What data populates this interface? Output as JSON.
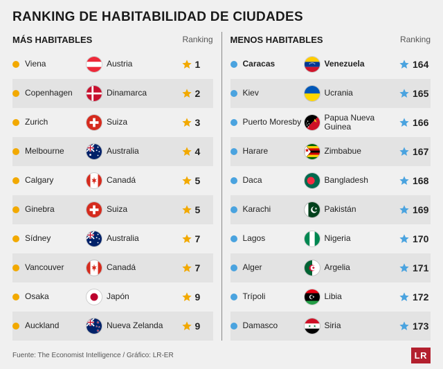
{
  "title": "RANKING DE HABITABILIDAD DE CIUDADES",
  "left": {
    "heading": "MÁS HABITABLES",
    "ranking_label": "Ranking",
    "bullet_color": "#f2a900",
    "star_color": "#f2a900",
    "stripe_light": "#f0f0f0",
    "stripe_dark": "#e3e3e3",
    "rows": [
      {
        "city": "Viena",
        "country": "Austria",
        "rank": "1",
        "flag_svg": "<svg viewBox='0 0 24 24'><rect width='24' height='8' y='0' fill='#ed2939'/><rect width='24' height='8' y='8' fill='#fff'/><rect width='24' height='8' y='16' fill='#ed2939'/></svg>"
      },
      {
        "city": "Copenhagen",
        "country": "Dinamarca",
        "rank": "2",
        "flag_svg": "<svg viewBox='0 0 24 24'><rect width='24' height='24' fill='#c8102e'/><rect x='8' width='3' height='24' fill='#fff'/><rect y='10.5' width='24' height='3' fill='#fff'/></svg>"
      },
      {
        "city": "Zurich",
        "country": "Suiza",
        "rank": "3",
        "flag_svg": "<svg viewBox='0 0 24 24'><rect width='24' height='24' fill='#d52b1e'/><rect x='10' y='5' width='4' height='14' fill='#fff'/><rect x='5' y='10' width='14' height='4' fill='#fff'/></svg>"
      },
      {
        "city": "Melbourne",
        "country": "Australia",
        "rank": "4",
        "flag_svg": "<svg viewBox='0 0 24 24'><rect width='24' height='24' fill='#012169'/><rect width='12' height='12' fill='#012169'/><path d='M0 0 L12 12 M12 0 L0 12' stroke='#fff' stroke-width='2'/><path d='M6 0 V12 M0 6 H12' stroke='#fff' stroke-width='3'/><path d='M6 0 V12 M0 6 H12' stroke='#c8102e' stroke-width='1.5'/><circle cx='6' cy='17' r='1.5' fill='#fff'/><circle cx='18' cy='5' r='1' fill='#fff'/><circle cx='16' cy='10' r='1' fill='#fff'/><circle cx='20' cy='12' r='1' fill='#fff'/><circle cx='18' cy='18' r='1' fill='#fff'/></svg>"
      },
      {
        "city": "Calgary",
        "country": "Canadá",
        "rank": "5",
        "flag_svg": "<svg viewBox='0 0 24 24'><rect width='24' height='24' fill='#fff'/><rect width='6' height='24' fill='#d52b1e'/><rect x='18' width='6' height='24' fill='#d52b1e'/><path d='M12 6 L13 10 L16 9 L14 12 L16 14 L13 13.5 L12 18 L11 13.5 L8 14 L10 12 L8 9 L11 10 Z' fill='#d52b1e'/></svg>"
      },
      {
        "city": "Ginebra",
        "country": "Suiza",
        "rank": "5",
        "flag_svg": "<svg viewBox='0 0 24 24'><rect width='24' height='24' fill='#d52b1e'/><rect x='10' y='5' width='4' height='14' fill='#fff'/><rect x='5' y='10' width='14' height='4' fill='#fff'/></svg>"
      },
      {
        "city": "Sídney",
        "country": "Australia",
        "rank": "7",
        "flag_svg": "<svg viewBox='0 0 24 24'><rect width='24' height='24' fill='#012169'/><rect width='12' height='12' fill='#012169'/><path d='M0 0 L12 12 M12 0 L0 12' stroke='#fff' stroke-width='2'/><path d='M6 0 V12 M0 6 H12' stroke='#fff' stroke-width='3'/><path d='M6 0 V12 M0 6 H12' stroke='#c8102e' stroke-width='1.5'/><circle cx='6' cy='17' r='1.5' fill='#fff'/><circle cx='18' cy='5' r='1' fill='#fff'/><circle cx='16' cy='10' r='1' fill='#fff'/><circle cx='20' cy='12' r='1' fill='#fff'/><circle cx='18' cy='18' r='1' fill='#fff'/></svg>"
      },
      {
        "city": "Vancouver",
        "country": "Canadá",
        "rank": "7",
        "flag_svg": "<svg viewBox='0 0 24 24'><rect width='24' height='24' fill='#fff'/><rect width='6' height='24' fill='#d52b1e'/><rect x='18' width='6' height='24' fill='#d52b1e'/><path d='M12 6 L13 10 L16 9 L14 12 L16 14 L13 13.5 L12 18 L11 13.5 L8 14 L10 12 L8 9 L11 10 Z' fill='#d52b1e'/></svg>"
      },
      {
        "city": "Osaka",
        "country": "Japón",
        "rank": "9",
        "flag_svg": "<svg viewBox='0 0 24 24'><rect width='24' height='24' fill='#fff'/><circle cx='12' cy='12' r='6' fill='#bc002d'/></svg>"
      },
      {
        "city": "Auckland",
        "country": "Nueva Zelanda",
        "rank": "9",
        "flag_svg": "<svg viewBox='0 0 24 24'><rect width='24' height='24' fill='#012169'/><rect width='12' height='12' fill='#012169'/><path d='M0 0 L12 12 M12 0 L0 12' stroke='#fff' stroke-width='2'/><path d='M6 0 V12 M0 6 H12' stroke='#fff' stroke-width='3'/><path d='M6 0 V12 M0 6 H12' stroke='#c8102e' stroke-width='1.5'/><polygon points='18,4 18.5,5.5 20,5.5 18.8,6.5 19.3,8 18,7 16.7,8 17.2,6.5 16,5.5 17.5,5.5' fill='#c8102e' stroke='#fff' stroke-width='0.3'/><polygon points='16,11 16.4,12 17.4,12 16.6,12.7 17,13.7 16,13 15,13.7 15.4,12.7 14.6,12 15.6,12' fill='#c8102e' stroke='#fff' stroke-width='0.3'/><polygon points='20,12 20.4,13 21.4,13 20.6,13.7 21,14.7 20,14 19,14.7 19.4,13.7 18.6,13 19.6,13' fill='#c8102e' stroke='#fff' stroke-width='0.3'/><polygon points='18,17 18.5,18.5 20,18.5 18.8,19.5 19.3,21 18,20 16.7,21 17.2,19.5 16,18.5 17.5,18.5' fill='#c8102e' stroke='#fff' stroke-width='0.3'/></svg>"
      }
    ]
  },
  "right": {
    "heading": "MENOS HABITABLES",
    "ranking_label": "Ranking",
    "bullet_color": "#4aa3df",
    "star_color": "#4aa3df",
    "stripe_light": "#f0f0f0",
    "stripe_dark": "#e3e3e3",
    "rows": [
      {
        "city": "Caracas",
        "country": "Venezuela",
        "rank": "164",
        "bold": true,
        "flag_svg": "<svg viewBox='0 0 24 24'><rect width='24' height='8' y='0' fill='#ffcc00'/><rect width='24' height='8' y='8' fill='#003893'/><rect width='24' height='8' y='16' fill='#cf142b'/><g fill='#fff'><circle cx='8' cy='11' r='0.7'/><circle cx='10' cy='10' r='0.7'/><circle cx='12' cy='9.5' r='0.7'/><circle cx='14' cy='10' r='0.7'/><circle cx='16' cy='11' r='0.7'/></g></svg>"
      },
      {
        "city": "Kiev",
        "country": "Ucrania",
        "rank": "165",
        "flag_svg": "<svg viewBox='0 0 24 24'><rect width='24' height='12' fill='#0057b7'/><rect width='24' height='12' y='12' fill='#ffd700'/></svg>"
      },
      {
        "city": "Puerto Moresby",
        "country": "Papua Nueva Guinea",
        "rank": "166",
        "flag_svg": "<svg viewBox='0 0 24 24'><polygon points='0,0 24,0 0,24' fill='#000'/><polygon points='24,0 24,24 0,24' fill='#ce1126'/><g fill='#fff'><circle cx='5' cy='10' r='0.8'/><circle cx='7' cy='14' r='0.8'/><circle cx='4' cy='16' r='0.8'/><circle cx='6' cy='19' r='0.8'/><circle cx='3' cy='13' r='0.6'/></g><path d='M15 6 Q18 8 19 12 Q17 10 15 10 Q16 8 15 6' fill='#fcd116'/></svg>"
      },
      {
        "city": "Harare",
        "country": "Zimbabue",
        "rank": "167",
        "flag_svg": "<svg viewBox='0 0 24 24'><rect width='24' height='3.43' y='0' fill='#006400'/><rect width='24' height='3.43' y='3.43' fill='#ffd200'/><rect width='24' height='3.43' y='6.86' fill='#d40000'/><rect width='24' height='3.43' y='10.29' fill='#000'/><rect width='24' height='3.43' y='13.71' fill='#d40000'/><rect width='24' height='3.43' y='17.14' fill='#ffd200'/><rect width='24' height='3.43' y='20.57' fill='#006400'/><polygon points='0,0 10,12 0,24' fill='#fff' stroke='#000' stroke-width='0.5'/><polygon points='3,8 4,11 7,11 4.7,12.8 5.5,16 3,14 0.5,16 1.3,12.8 -1,11 2,11' fill='#d40000' transform='translate(1.5,0) scale(0.8)'/></svg>"
      },
      {
        "city": "Daca",
        "country": "Bangladesh",
        "rank": "168",
        "flag_svg": "<svg viewBox='0 0 24 24'><rect width='24' height='24' fill='#006a4e'/><circle cx='10' cy='12' r='6' fill='#f42a41'/></svg>"
      },
      {
        "city": "Karachi",
        "country": "Pakistán",
        "rank": "169",
        "flag_svg": "<svg viewBox='0 0 24 24'><rect width='24' height='24' fill='#01411c'/><rect width='6' height='24' fill='#fff'/><circle cx='15' cy='12' r='5' fill='#fff'/><circle cx='16.5' cy='11' r='4.2' fill='#01411c'/><polygon points='18,8 18.6,9.5 20,9.5 18.9,10.5 19.3,12 18,11.1 16.7,12 17.1,10.5 16,9.5 17.4,9.5' fill='#fff'/></svg>"
      },
      {
        "city": "Lagos",
        "country": "Nigeria",
        "rank": "170",
        "flag_svg": "<svg viewBox='0 0 24 24'><rect width='8' height='24' fill='#008751'/><rect width='8' height='24' x='8' fill='#fff'/><rect width='8' height='24' x='16' fill='#008751'/></svg>"
      },
      {
        "city": "Alger",
        "country": "Argelia",
        "rank": "171",
        "flag_svg": "<svg viewBox='0 0 24 24'><rect width='12' height='24' fill='#006233'/><rect width='12' height='24' x='12' fill='#fff'/><circle cx='12' cy='12' r='5' fill='#d21034'/><circle cx='13.5' cy='12' r='4' fill='#fff'/><circle cx='12.5' cy='12' r='4' fill='none'/><polygon points='14,9 14.7,11 16.5,11 15,12.2 15.6,14 14,12.8 12.4,14 13,12.2 11.5,11 13.3,11' fill='#d21034'/></svg>"
      },
      {
        "city": "Trípoli",
        "country": "Libia",
        "rank": "172",
        "flag_svg": "<svg viewBox='0 0 24 24'><rect width='24' height='6' fill='#e70013'/><rect width='24' height='12' y='6' fill='#000'/><rect width='24' height='6' y='18' fill='#239e46'/><circle cx='11' cy='12' r='3.5' fill='#fff'/><circle cx='12' cy='12' r='2.9' fill='#000'/><polygon points='14,10 14.5,11.3 15.8,11.3 14.7,12.1 15.1,13.4 14,12.6 12.9,13.4 13.3,12.1 12.2,11.3 13.5,11.3' fill='#fff'/></svg>"
      },
      {
        "city": "Damasco",
        "country": "Siria",
        "rank": "173",
        "flag_svg": "<svg viewBox='0 0 24 24'><rect width='24' height='8' fill='#ce1126'/><rect width='24' height='8' y='8' fill='#fff'/><rect width='24' height='8' y='16' fill='#000'/><polygon points='8,10 8.5,11.5 10,11.5 8.8,12.4 9.3,14 8,13 6.7,14 7.2,12.4 6,11.5 7.5,11.5' fill='#007a3d'/><polygon points='16,10 16.5,11.5 18,11.5 16.8,12.4 17.3,14 16,13 14.7,14 15.2,12.4 14,11.5 15.5,11.5' fill='#007a3d'/></svg>"
      }
    ]
  },
  "source": "Fuente: The Economist Intelligence / Gráfico: LR-ER",
  "logo": "LR",
  "logo_bg": "#b3202e"
}
